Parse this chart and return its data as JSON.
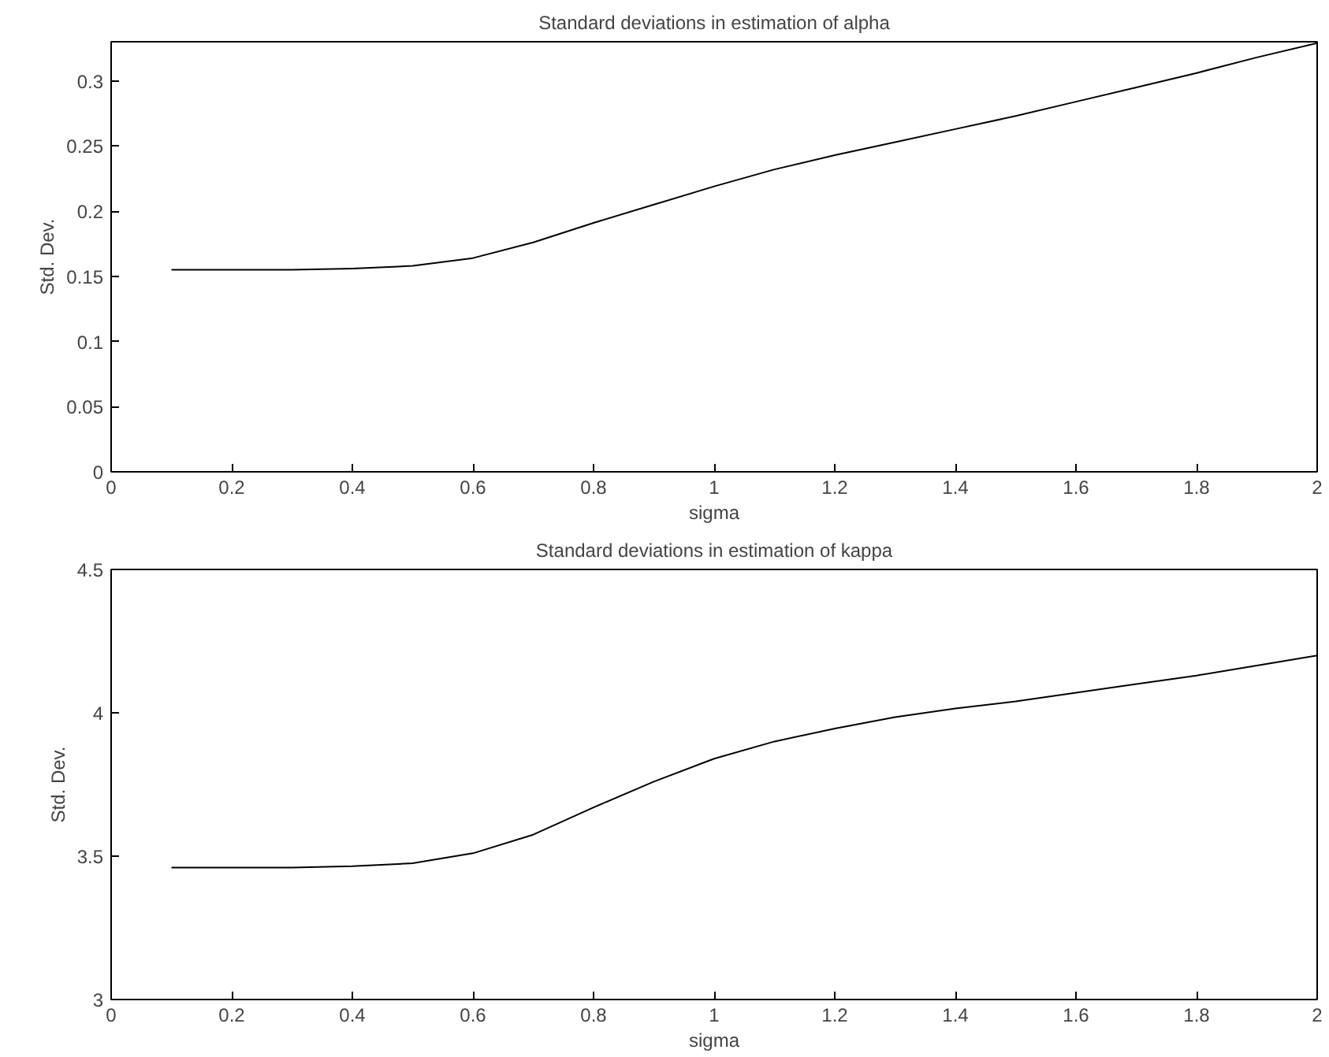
{
  "chart_data": [
    {
      "type": "line",
      "title": "Standard deviations in estimation of alpha",
      "xlabel": "sigma",
      "ylabel": "Std. Dev.",
      "x": [
        0.1,
        0.2,
        0.3,
        0.4,
        0.5,
        0.6,
        0.7,
        0.8,
        0.9,
        1.0,
        1.1,
        1.2,
        1.3,
        1.4,
        1.5,
        1.6,
        1.7,
        1.8,
        1.9,
        2.0
      ],
      "series": [
        {
          "color": "#000000",
          "values": [
            0.155,
            0.155,
            0.155,
            0.156,
            0.158,
            0.164,
            0.176,
            0.191,
            0.205,
            0.219,
            0.232,
            0.243,
            0.253,
            0.263,
            0.273,
            0.284,
            0.295,
            0.306,
            0.318,
            0.329
          ]
        }
      ],
      "xlim": [
        0,
        2
      ],
      "ylim": [
        0,
        0.33
      ],
      "xticks": [
        0,
        0.2,
        0.4,
        0.6,
        0.8,
        1,
        1.2,
        1.4,
        1.6,
        1.8,
        2
      ],
      "yticks": [
        0,
        0.05,
        0.1,
        0.15,
        0.2,
        0.25,
        0.3
      ],
      "grid": false
    },
    {
      "type": "line",
      "title": "Standard deviations in estimation of kappa",
      "xlabel": "sigma",
      "ylabel": "Std. Dev.",
      "x": [
        0.1,
        0.2,
        0.3,
        0.4,
        0.5,
        0.6,
        0.7,
        0.8,
        0.9,
        1.0,
        1.1,
        1.2,
        1.3,
        1.4,
        1.5,
        1.6,
        1.7,
        1.8,
        1.9,
        2.0
      ],
      "series": [
        {
          "color": "#000000",
          "values": [
            3.46,
            3.46,
            3.46,
            3.465,
            3.475,
            3.51,
            3.575,
            3.67,
            3.76,
            3.84,
            3.9,
            3.945,
            3.985,
            4.015,
            4.04,
            4.07,
            4.1,
            4.13,
            4.165,
            4.2
          ]
        }
      ],
      "xlim": [
        0,
        2
      ],
      "ylim": [
        3,
        4.5
      ],
      "xticks": [
        0,
        0.2,
        0.4,
        0.6,
        0.8,
        1,
        1.2,
        1.4,
        1.6,
        1.8,
        2
      ],
      "yticks": [
        3,
        3.5,
        4,
        4.5
      ],
      "grid": false
    }
  ]
}
